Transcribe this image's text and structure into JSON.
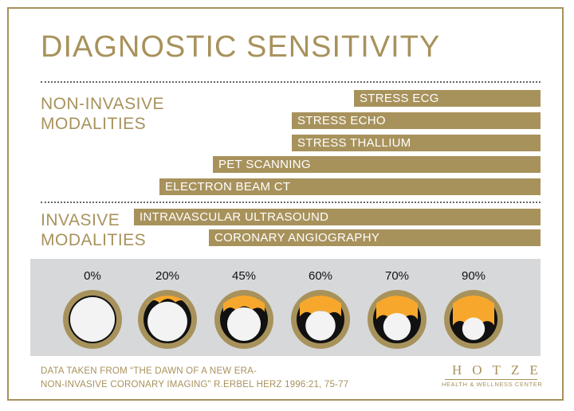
{
  "title": "DIAGNOSTIC SENSITIVITY",
  "sections": {
    "noninvasive": [
      "NON-INVASIVE",
      "MODALITIES"
    ],
    "invasive": [
      "INVASIVE",
      "MODALITIES"
    ]
  },
  "colors": {
    "gold": "#a8925c",
    "plaque": "#f7a82c",
    "panel": "#d7d8da",
    "vessel_lumen": "#f3f3f3"
  },
  "chart_data": {
    "type": "bar",
    "categories": [
      "STRESS ECG",
      "STRESS ECHO",
      "STRESS THALLIUM",
      "PET SCANNING",
      "ELECTRON BEAM CT",
      "INTRAVASCULAR ULTRASOUND",
      "CORONARY ANGIOGRAPHY"
    ],
    "groups": [
      "non-invasive",
      "non-invasive",
      "non-invasive",
      "non-invasive",
      "non-invasive",
      "invasive",
      "invasive"
    ],
    "values": [
      45,
      60,
      60,
      79,
      92,
      98,
      80
    ],
    "xlim": [
      0,
      100
    ],
    "title": "DIAGNOSTIC SENSITIVITY",
    "stenosis_scale": [
      "0%",
      "20%",
      "45%",
      "60%",
      "70%",
      "90%"
    ],
    "stenosis_fractions": [
      0,
      0.2,
      0.45,
      0.6,
      0.7,
      0.9
    ]
  },
  "source": [
    "DATA TAKEN FROM “THE DAWN OF A NEW ERA-",
    "NON-INVASIVE CORONARY IMAGING” R.ERBEL HERZ 1996:21, 75-77"
  ],
  "logo": {
    "name": "HOTZE",
    "tagline": "HEALTH & WELLNESS CENTER"
  }
}
